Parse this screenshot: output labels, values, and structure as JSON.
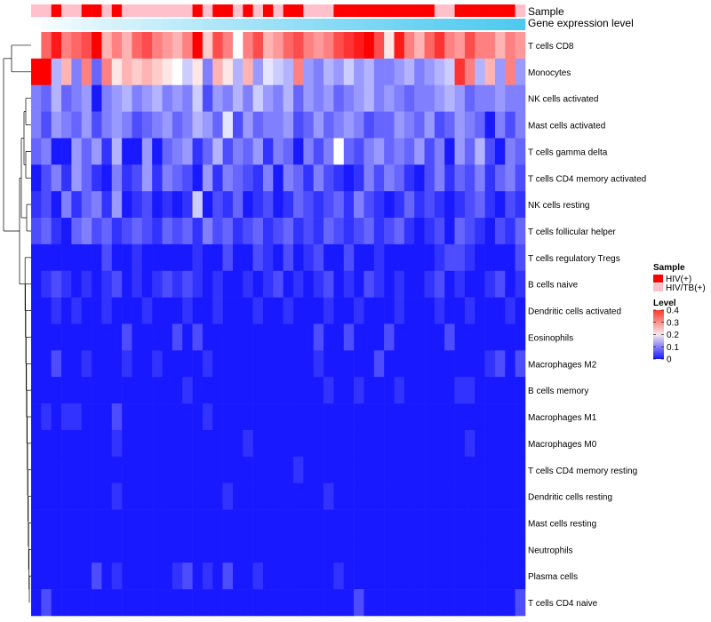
{
  "chart_data": {
    "type": "heatmap",
    "title": "",
    "annotation_tracks": [
      "Sample",
      "Gene expression level"
    ],
    "rows": [
      "T cells CD8",
      "Monocytes",
      "NK cells activated",
      "Mast cells activated",
      "T cells gamma delta",
      "T cells CD4 memory activated",
      "NK cells resting",
      "T cells follicular helper",
      "T cells regulatory  Tregs",
      "B cells naive",
      "Dendritic cells activated",
      "Eosinophils",
      "Macrophages M2",
      "B cells memory",
      "Macrophages M1",
      "Macrophages M0",
      "T cells CD4 memory resting",
      "Dendritic cells resting",
      "Mast cells resting",
      "Neutrophils",
      "Plasma cells",
      "T cells CD4 naive"
    ],
    "n_columns": 49,
    "sample_groups": [
      "HIV/TB(+)",
      "HIV/TB(+)",
      "HIV(+)",
      "HIV/TB(+)",
      "HIV/TB(+)",
      "HIV(+)",
      "HIV(+)",
      "HIV/TB(+)",
      "HIV(+)",
      "HIV/TB(+)",
      "HIV/TB(+)",
      "HIV/TB(+)",
      "HIV/TB(+)",
      "HIV/TB(+)",
      "HIV/TB(+)",
      "HIV/TB(+)",
      "HIV(+)",
      "HIV/TB(+)",
      "HIV(+)",
      "HIV(+)",
      "HIV/TB(+)",
      "HIV(+)",
      "HIV/TB(+)",
      "HIV(+)",
      "HIV/TB(+)",
      "HIV(+)",
      "HIV(+)",
      "HIV/TB(+)",
      "HIV/TB(+)",
      "HIV/TB(+)",
      "HIV(+)",
      "HIV(+)",
      "HIV(+)",
      "HIV(+)",
      "HIV(+)",
      "HIV(+)",
      "HIV(+)",
      "HIV(+)",
      "HIV(+)",
      "HIV(+)",
      "HIV/TB(+)",
      "HIV/TB(+)",
      "HIV(+)",
      "HIV(+)",
      "HIV(+)",
      "HIV(+)",
      "HIV(+)",
      "HIV(+)",
      "HIV/TB(+)"
    ],
    "expression_level_range": [
      0,
      1
    ],
    "values": [
      [
        0.2,
        0.32,
        0.38,
        0.3,
        0.32,
        0.34,
        0.4,
        0.26,
        0.3,
        0.26,
        0.32,
        0.34,
        0.3,
        0.28,
        0.26,
        0.3,
        0.4,
        0.24,
        0.34,
        0.3,
        0.2,
        0.3,
        0.34,
        0.26,
        0.28,
        0.32,
        0.34,
        0.3,
        0.28,
        0.3,
        0.34,
        0.36,
        0.38,
        0.4,
        0.34,
        0.22,
        0.38,
        0.3,
        0.26,
        0.32,
        0.36,
        0.3,
        0.28,
        0.34,
        0.3,
        0.3,
        0.26,
        0.3,
        0.28
      ],
      [
        0.4,
        0.4,
        0.14,
        0.26,
        0.1,
        0.3,
        0.08,
        0.3,
        0.22,
        0.26,
        0.24,
        0.26,
        0.24,
        0.22,
        0.2,
        0.16,
        0.22,
        0.1,
        0.26,
        0.22,
        0.14,
        0.26,
        0.12,
        0.18,
        0.16,
        0.14,
        0.3,
        0.12,
        0.1,
        0.14,
        0.12,
        0.16,
        0.12,
        0.14,
        0.1,
        0.1,
        0.12,
        0.14,
        0.1,
        0.12,
        0.14,
        0.16,
        0.36,
        0.3,
        0.14,
        0.26,
        0.12,
        0.3,
        0.12
      ],
      [
        0.1,
        0.08,
        0.14,
        0.08,
        0.1,
        0.12,
        0.02,
        0.1,
        0.12,
        0.14,
        0.1,
        0.12,
        0.14,
        0.1,
        0.12,
        0.1,
        0.16,
        0.06,
        0.12,
        0.1,
        0.14,
        0.1,
        0.16,
        0.12,
        0.1,
        0.14,
        0.08,
        0.12,
        0.1,
        0.12,
        0.08,
        0.1,
        0.12,
        0.14,
        0.1,
        0.12,
        0.1,
        0.08,
        0.1,
        0.1,
        0.12,
        0.14,
        0.12,
        0.08,
        0.1,
        0.1,
        0.12,
        0.1,
        0.1
      ],
      [
        0.1,
        0.06,
        0.12,
        0.1,
        0.08,
        0.12,
        0.06,
        0.1,
        0.12,
        0.1,
        0.06,
        0.08,
        0.1,
        0.12,
        0.08,
        0.1,
        0.14,
        0.12,
        0.08,
        0.18,
        0.06,
        0.12,
        0.08,
        0.1,
        0.1,
        0.12,
        0.06,
        0.08,
        0.12,
        0.08,
        0.1,
        0.12,
        0.1,
        0.06,
        0.08,
        0.08,
        0.12,
        0.1,
        0.08,
        0.12,
        0.06,
        0.08,
        0.12,
        0.1,
        0.08,
        0.02,
        0.1,
        0.06,
        0.1
      ],
      [
        0.08,
        0.1,
        0.02,
        0.02,
        0.12,
        0.08,
        0.12,
        0.04,
        0.14,
        0.02,
        0.02,
        0.12,
        0.02,
        0.08,
        0.1,
        0.12,
        0.04,
        0.08,
        0.14,
        0.06,
        0.1,
        0.08,
        0.12,
        0.04,
        0.1,
        0.08,
        0.02,
        0.1,
        0.06,
        0.1,
        0.2,
        0.08,
        0.06,
        0.1,
        0.12,
        0.08,
        0.1,
        0.08,
        0.12,
        0.06,
        0.1,
        0.02,
        0.12,
        0.08,
        0.14,
        0.06,
        0.02,
        0.1,
        0.08
      ],
      [
        0.02,
        0.06,
        0.1,
        0.04,
        0.12,
        0.08,
        0.04,
        0.02,
        0.1,
        0.04,
        0.06,
        0.12,
        0.04,
        0.1,
        0.08,
        0.06,
        0.02,
        0.12,
        0.04,
        0.1,
        0.08,
        0.06,
        0.04,
        0.1,
        0.02,
        0.1,
        0.08,
        0.04,
        0.1,
        0.06,
        0.04,
        0.02,
        0.04,
        0.1,
        0.06,
        0.1,
        0.08,
        0.04,
        0.02,
        0.06,
        0.1,
        0.04,
        0.08,
        0.06,
        0.1,
        0.04,
        0.08,
        0.1,
        0.06
      ],
      [
        0.04,
        0.06,
        0.02,
        0.1,
        0.04,
        0.08,
        0.1,
        0.04,
        0.12,
        0.02,
        0.04,
        0.06,
        0.02,
        0.04,
        0.02,
        0.04,
        0.16,
        0.02,
        0.06,
        0.04,
        0.08,
        0.02,
        0.04,
        0.06,
        0.02,
        0.04,
        0.08,
        0.06,
        0.04,
        0.06,
        0.08,
        0.04,
        0.1,
        0.06,
        0.04,
        0.02,
        0.04,
        0.08,
        0.04,
        0.06,
        0.04,
        0.02,
        0.04,
        0.06,
        0.08,
        0.04,
        0.02,
        0.06,
        0.04
      ],
      [
        0.06,
        0.08,
        0.04,
        0.02,
        0.08,
        0.1,
        0.06,
        0.08,
        0.04,
        0.06,
        0.08,
        0.06,
        0.04,
        0.08,
        0.06,
        0.08,
        0.04,
        0.1,
        0.06,
        0.08,
        0.04,
        0.06,
        0.08,
        0.04,
        0.06,
        0.08,
        0.04,
        0.06,
        0.04,
        0.08,
        0.06,
        0.04,
        0.06,
        0.08,
        0.04,
        0.06,
        0.08,
        0.04,
        0.02,
        0.04,
        0.06,
        0.02,
        0.08,
        0.06,
        0.04,
        0.02,
        0.06,
        0.04,
        0.08
      ],
      [
        0.02,
        0.02,
        0.02,
        0.02,
        0.02,
        0.02,
        0.02,
        0.06,
        0.02,
        0.02,
        0.04,
        0.02,
        0.02,
        0.02,
        0.02,
        0.02,
        0.04,
        0.02,
        0.02,
        0.06,
        0.02,
        0.02,
        0.06,
        0.04,
        0.02,
        0.06,
        0.02,
        0.04,
        0.06,
        0.02,
        0.02,
        0.06,
        0.02,
        0.02,
        0.04,
        0.02,
        0.02,
        0.02,
        0.02,
        0.02,
        0.04,
        0.06,
        0.06,
        0.04,
        0.02,
        0.02,
        0.02,
        0.02,
        0.06
      ],
      [
        0.02,
        0.04,
        0.06,
        0.04,
        0.02,
        0.04,
        0.02,
        0.04,
        0.06,
        0.02,
        0.04,
        0.02,
        0.04,
        0.06,
        0.04,
        0.06,
        0.04,
        0.02,
        0.04,
        0.02,
        0.02,
        0.04,
        0.02,
        0.04,
        0.06,
        0.02,
        0.04,
        0.02,
        0.04,
        0.06,
        0.02,
        0.04,
        0.02,
        0.06,
        0.04,
        0.02,
        0.04,
        0.02,
        0.02,
        0.04,
        0.06,
        0.02,
        0.04,
        0.02,
        0.02,
        0.04,
        0.06,
        0.02,
        0.04
      ],
      [
        0.02,
        0.02,
        0.04,
        0.02,
        0.04,
        0.02,
        0.02,
        0.04,
        0.02,
        0.02,
        0.02,
        0.04,
        0.02,
        0.02,
        0.02,
        0.04,
        0.02,
        0.02,
        0.04,
        0.02,
        0.02,
        0.02,
        0.04,
        0.02,
        0.02,
        0.04,
        0.02,
        0.02,
        0.02,
        0.04,
        0.02,
        0.02,
        0.04,
        0.02,
        0.02,
        0.02,
        0.04,
        0.02,
        0.02,
        0.02,
        0.04,
        0.02,
        0.02,
        0.04,
        0.02,
        0.02,
        0.02,
        0.04,
        0.02
      ],
      [
        0.02,
        0.02,
        0.02,
        0.02,
        0.02,
        0.02,
        0.02,
        0.02,
        0.02,
        0.06,
        0.02,
        0.02,
        0.02,
        0.02,
        0.06,
        0.02,
        0.06,
        0.02,
        0.02,
        0.02,
        0.02,
        0.02,
        0.02,
        0.02,
        0.02,
        0.02,
        0.02,
        0.02,
        0.06,
        0.02,
        0.02,
        0.06,
        0.02,
        0.02,
        0.02,
        0.06,
        0.02,
        0.02,
        0.02,
        0.02,
        0.02,
        0.06,
        0.02,
        0.02,
        0.02,
        0.02,
        0.02,
        0.02,
        0.02
      ],
      [
        0.02,
        0.02,
        0.06,
        0.02,
        0.02,
        0.04,
        0.02,
        0.02,
        0.02,
        0.04,
        0.02,
        0.02,
        0.04,
        0.02,
        0.02,
        0.02,
        0.02,
        0.04,
        0.02,
        0.02,
        0.02,
        0.02,
        0.02,
        0.02,
        0.02,
        0.02,
        0.02,
        0.02,
        0.04,
        0.02,
        0.02,
        0.02,
        0.02,
        0.02,
        0.06,
        0.02,
        0.02,
        0.02,
        0.02,
        0.02,
        0.02,
        0.02,
        0.02,
        0.02,
        0.02,
        0.04,
        0.06,
        0.02,
        0.06
      ],
      [
        0.02,
        0.02,
        0.02,
        0.02,
        0.02,
        0.02,
        0.02,
        0.02,
        0.02,
        0.02,
        0.02,
        0.02,
        0.02,
        0.02,
        0.02,
        0.04,
        0.02,
        0.02,
        0.02,
        0.02,
        0.02,
        0.02,
        0.02,
        0.02,
        0.02,
        0.02,
        0.02,
        0.02,
        0.02,
        0.04,
        0.02,
        0.02,
        0.04,
        0.02,
        0.02,
        0.02,
        0.04,
        0.02,
        0.02,
        0.02,
        0.02,
        0.02,
        0.04,
        0.04,
        0.02,
        0.02,
        0.02,
        0.02,
        0.02
      ],
      [
        0.02,
        0.04,
        0.02,
        0.04,
        0.04,
        0.02,
        0.02,
        0.02,
        0.06,
        0.02,
        0.02,
        0.02,
        0.02,
        0.02,
        0.02,
        0.02,
        0.02,
        0.04,
        0.02,
        0.02,
        0.02,
        0.02,
        0.02,
        0.02,
        0.02,
        0.02,
        0.02,
        0.02,
        0.02,
        0.02,
        0.02,
        0.02,
        0.02,
        0.02,
        0.02,
        0.02,
        0.02,
        0.02,
        0.02,
        0.02,
        0.02,
        0.02,
        0.02,
        0.02,
        0.02,
        0.02,
        0.02,
        0.02,
        0.02
      ],
      [
        0.02,
        0.02,
        0.02,
        0.02,
        0.02,
        0.02,
        0.02,
        0.02,
        0.04,
        0.02,
        0.02,
        0.02,
        0.02,
        0.02,
        0.02,
        0.02,
        0.02,
        0.02,
        0.02,
        0.02,
        0.02,
        0.04,
        0.02,
        0.02,
        0.02,
        0.02,
        0.02,
        0.02,
        0.02,
        0.02,
        0.02,
        0.02,
        0.02,
        0.02,
        0.02,
        0.02,
        0.02,
        0.02,
        0.02,
        0.02,
        0.02,
        0.02,
        0.02,
        0.04,
        0.02,
        0.02,
        0.02,
        0.02,
        0.02
      ],
      [
        0.02,
        0.02,
        0.02,
        0.02,
        0.02,
        0.02,
        0.02,
        0.02,
        0.02,
        0.02,
        0.02,
        0.02,
        0.02,
        0.02,
        0.02,
        0.02,
        0.02,
        0.02,
        0.02,
        0.02,
        0.02,
        0.02,
        0.02,
        0.02,
        0.02,
        0.02,
        0.04,
        0.02,
        0.02,
        0.02,
        0.02,
        0.02,
        0.02,
        0.02,
        0.02,
        0.02,
        0.02,
        0.02,
        0.02,
        0.02,
        0.02,
        0.02,
        0.02,
        0.02,
        0.02,
        0.02,
        0.02,
        0.02,
        0.02
      ],
      [
        0.02,
        0.02,
        0.02,
        0.02,
        0.02,
        0.02,
        0.02,
        0.02,
        0.04,
        0.02,
        0.02,
        0.02,
        0.02,
        0.02,
        0.02,
        0.02,
        0.02,
        0.02,
        0.02,
        0.04,
        0.02,
        0.02,
        0.02,
        0.02,
        0.02,
        0.02,
        0.02,
        0.02,
        0.02,
        0.04,
        0.02,
        0.02,
        0.02,
        0.02,
        0.02,
        0.02,
        0.02,
        0.02,
        0.02,
        0.02,
        0.02,
        0.02,
        0.02,
        0.02,
        0.02,
        0.02,
        0.02,
        0.02,
        0.02
      ],
      [
        0.02,
        0.02,
        0.02,
        0.02,
        0.02,
        0.02,
        0.02,
        0.02,
        0.02,
        0.02,
        0.02,
        0.02,
        0.02,
        0.02,
        0.02,
        0.02,
        0.02,
        0.02,
        0.02,
        0.02,
        0.02,
        0.02,
        0.02,
        0.02,
        0.02,
        0.02,
        0.02,
        0.02,
        0.02,
        0.02,
        0.02,
        0.02,
        0.02,
        0.02,
        0.02,
        0.02,
        0.02,
        0.02,
        0.02,
        0.02,
        0.02,
        0.02,
        0.02,
        0.02,
        0.02,
        0.02,
        0.02,
        0.02,
        0.02
      ],
      [
        0.02,
        0.02,
        0.02,
        0.02,
        0.02,
        0.02,
        0.02,
        0.02,
        0.02,
        0.02,
        0.02,
        0.02,
        0.02,
        0.02,
        0.02,
        0.02,
        0.02,
        0.02,
        0.02,
        0.02,
        0.02,
        0.02,
        0.02,
        0.02,
        0.02,
        0.02,
        0.02,
        0.02,
        0.02,
        0.02,
        0.02,
        0.02,
        0.02,
        0.02,
        0.02,
        0.02,
        0.02,
        0.02,
        0.02,
        0.02,
        0.02,
        0.02,
        0.02,
        0.02,
        0.02,
        0.02,
        0.02,
        0.02,
        0.02
      ],
      [
        0.02,
        0.02,
        0.02,
        0.02,
        0.02,
        0.02,
        0.06,
        0.02,
        0.04,
        0.02,
        0.02,
        0.02,
        0.02,
        0.02,
        0.04,
        0.06,
        0.02,
        0.04,
        0.02,
        0.06,
        0.02,
        0.02,
        0.04,
        0.02,
        0.02,
        0.02,
        0.02,
        0.02,
        0.02,
        0.02,
        0.04,
        0.02,
        0.02,
        0.02,
        0.02,
        0.02,
        0.02,
        0.02,
        0.02,
        0.02,
        0.02,
        0.02,
        0.02,
        0.02,
        0.02,
        0.02,
        0.02,
        0.02,
        0.02
      ],
      [
        0.02,
        0.06,
        0.02,
        0.02,
        0.02,
        0.02,
        0.02,
        0.02,
        0.02,
        0.02,
        0.02,
        0.02,
        0.02,
        0.02,
        0.02,
        0.02,
        0.02,
        0.02,
        0.02,
        0.02,
        0.02,
        0.02,
        0.02,
        0.02,
        0.02,
        0.02,
        0.02,
        0.02,
        0.02,
        0.02,
        0.02,
        0.02,
        0.06,
        0.02,
        0.02,
        0.02,
        0.02,
        0.02,
        0.02,
        0.02,
        0.02,
        0.02,
        0.02,
        0.02,
        0.02,
        0.02,
        0.02,
        0.02,
        0.06
      ]
    ],
    "legend": {
      "sample_title": "Sample",
      "sample_entries": [
        {
          "label": "HIV(+)",
          "color": "#ff0000"
        },
        {
          "label": "HIV/TB(+)",
          "color": "#ffc0cb"
        }
      ],
      "level_title": "Level",
      "level_ticks": [
        "0.4",
        "0.3",
        "0.2",
        "0.1",
        "0"
      ],
      "level_tick_values": [
        0.4,
        0.3,
        0.2,
        0.1,
        0
      ],
      "level_range": [
        0,
        0.4
      ],
      "placement": "right"
    },
    "colors": {
      "low": "#0000ff",
      "mid": "#ffffff",
      "high": "#ff0000",
      "expr_low": "#ffffff",
      "expr_high": "#4ec9f0",
      "dendrogram": "#000000"
    }
  }
}
